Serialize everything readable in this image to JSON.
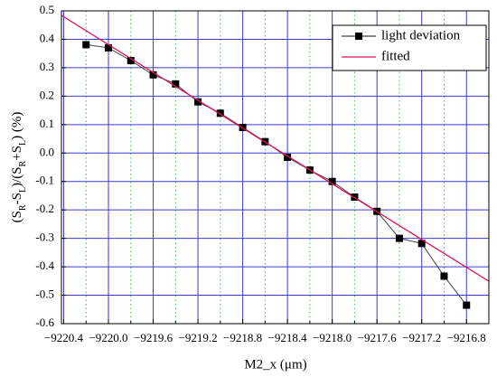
{
  "chart_data": {
    "type": "line",
    "xlabel": "M2_x (μm)",
    "ylabel": "(SR-SL)/(SR+SL)  (%)",
    "xlim": [
      -9220.42,
      -9216.6
    ],
    "ylim": [
      -0.6,
      0.5
    ],
    "xticks": [
      {
        "value": -9220.4,
        "label": "−9220.4"
      },
      {
        "value": -9220.0,
        "label": "−9220.0"
      },
      {
        "value": -9219.6,
        "label": "−9219.6"
      },
      {
        "value": -9219.2,
        "label": "−9219.2"
      },
      {
        "value": -9218.8,
        "label": "−9218.8"
      },
      {
        "value": -9218.4,
        "label": "−9218.4"
      },
      {
        "value": -9218.0,
        "label": "−9218.0"
      },
      {
        "value": -9217.6,
        "label": "−9217.6"
      },
      {
        "value": -9217.2,
        "label": "−9217.2"
      },
      {
        "value": -9216.8,
        "label": "−9216.8"
      }
    ],
    "xminorticks": [
      -9220.2,
      -9219.8,
      -9219.4,
      -9219.0,
      -9218.6,
      -9218.2,
      -9217.8,
      -9217.4,
      -9217.0,
      -9216.6
    ],
    "yticks": [
      0.5,
      0.4,
      0.3,
      0.2,
      0.1,
      {
        "value": 0,
        "label": "0.0"
      },
      {
        "value": -0.1,
        "label": "-0.1"
      },
      {
        "value": -0.2,
        "label": "-0.2"
      },
      {
        "value": -0.3,
        "label": "-0.3"
      },
      {
        "value": -0.4,
        "label": "-0.4"
      },
      {
        "value": -0.5,
        "label": "-0.5"
      },
      {
        "value": -0.6,
        "label": "-0.6"
      }
    ],
    "grid": true,
    "grid_color": "#3c3ccc",
    "minor_grid_color": "#33cc33",
    "legend": "upper right",
    "series": [
      {
        "name": "light deviation",
        "color": "#000000",
        "line_color": "#444444",
        "marker": "square",
        "x": [
          -9220.2,
          -9220.0,
          -9219.8,
          -9219.6,
          -9219.4,
          -9219.2,
          -9219.0,
          -9218.8,
          -9218.6,
          -9218.4,
          -9218.2,
          -9218.0,
          -9217.8,
          -9217.6,
          -9217.4,
          -9217.2,
          -9217.0,
          -9216.8
        ],
        "values": [
          0.381,
          0.37,
          0.325,
          0.275,
          0.243,
          0.18,
          0.14,
          0.09,
          0.04,
          -0.015,
          -0.06,
          -0.1,
          -0.155,
          -0.205,
          -0.3,
          -0.318,
          -0.433,
          -0.535
        ]
      },
      {
        "name": "fitted",
        "color": "#e0105a",
        "marker": "none",
        "x": [
          -9220.42,
          -9216.6
        ],
        "values": [
          0.484,
          -0.451
        ]
      }
    ]
  }
}
